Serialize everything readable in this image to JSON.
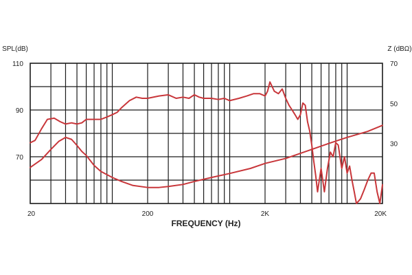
{
  "chart_data": {
    "type": "line",
    "xlabel": "FREQUENCY (Hz)",
    "ylabel_left": "SPL(dB)",
    "ylabel_right": "Z (dBΩ)",
    "x_scale": "log",
    "xlim": [
      20,
      20000
    ],
    "x_ticks": [
      {
        "value": 20,
        "label": "20"
      },
      {
        "value": 200,
        "label": "200"
      },
      {
        "value": 2000,
        "label": "2K"
      },
      {
        "value": 20000,
        "label": "20K"
      }
    ],
    "ylim_left": [
      50,
      110
    ],
    "y_ticks_left": [
      {
        "value": 110,
        "label": "110"
      },
      {
        "value": 90,
        "label": "90"
      },
      {
        "value": 70,
        "label": "70"
      }
    ],
    "ylim_right": [
      0,
      70
    ],
    "y_ticks_right": [
      {
        "value": 70,
        "label": "70"
      },
      {
        "value": 50,
        "label": "50"
      },
      {
        "value": 30,
        "label": "30"
      }
    ],
    "grid": true,
    "colors": {
      "curve": "#c8363a",
      "grid": "#1a1a1a"
    },
    "series": [
      {
        "axis": "left",
        "x": [
          20,
          22,
          25,
          28,
          32,
          36,
          40,
          45,
          50,
          55,
          60,
          70,
          80,
          90,
          100,
          110,
          120,
          140,
          160,
          180,
          200,
          250,
          300,
          350,
          400,
          450,
          500,
          550,
          600,
          700,
          800,
          900,
          1000,
          1200,
          1400,
          1600,
          1800,
          2000,
          2100,
          2200,
          2400,
          2600,
          2800,
          3000,
          3200,
          3400,
          3600,
          3800,
          4000,
          4200,
          4400,
          4600,
          4800,
          5000,
          5200,
          5400,
          5600,
          6000,
          6400,
          6800,
          7200,
          7600,
          8000,
          8400,
          9000,
          9500,
          10000,
          10500,
          11000,
          11500,
          12000,
          12500,
          13000,
          14000,
          15000,
          16000,
          17000,
          18000,
          19000,
          20000
        ],
        "y": [
          76,
          77,
          82,
          86,
          86.5,
          85,
          84,
          84.5,
          84,
          84.5,
          86,
          86,
          86,
          87,
          88,
          89,
          91,
          94,
          95.5,
          95,
          95,
          96,
          96.5,
          95,
          95.5,
          95,
          96.5,
          95.5,
          95,
          95,
          94.5,
          95,
          94,
          95,
          96,
          97,
          97,
          96,
          98,
          102,
          98,
          97,
          99,
          95,
          92,
          90,
          88,
          86,
          88,
          93,
          92,
          85,
          81,
          75,
          68,
          62,
          55,
          65,
          55,
          65,
          72,
          70,
          76,
          75,
          65,
          70,
          63,
          66,
          60,
          55,
          50,
          51,
          52,
          56,
          60,
          63,
          63,
          55,
          50,
          58
        ]
      },
      {
        "axis": "right",
        "x": [
          20,
          25,
          30,
          35,
          40,
          45,
          50,
          55,
          60,
          70,
          80,
          100,
          120,
          150,
          200,
          250,
          300,
          400,
          500,
          700,
          1000,
          1500,
          2000,
          3000,
          5000,
          7000,
          10000,
          15000,
          20000
        ],
        "y": [
          18,
          22,
          27,
          31,
          33,
          32,
          29,
          26,
          24,
          19,
          16,
          13,
          11,
          9,
          8,
          8,
          8.5,
          9.5,
          11,
          13,
          15,
          17.5,
          20,
          22.5,
          27,
          30,
          33,
          36,
          39
        ]
      }
    ]
  }
}
